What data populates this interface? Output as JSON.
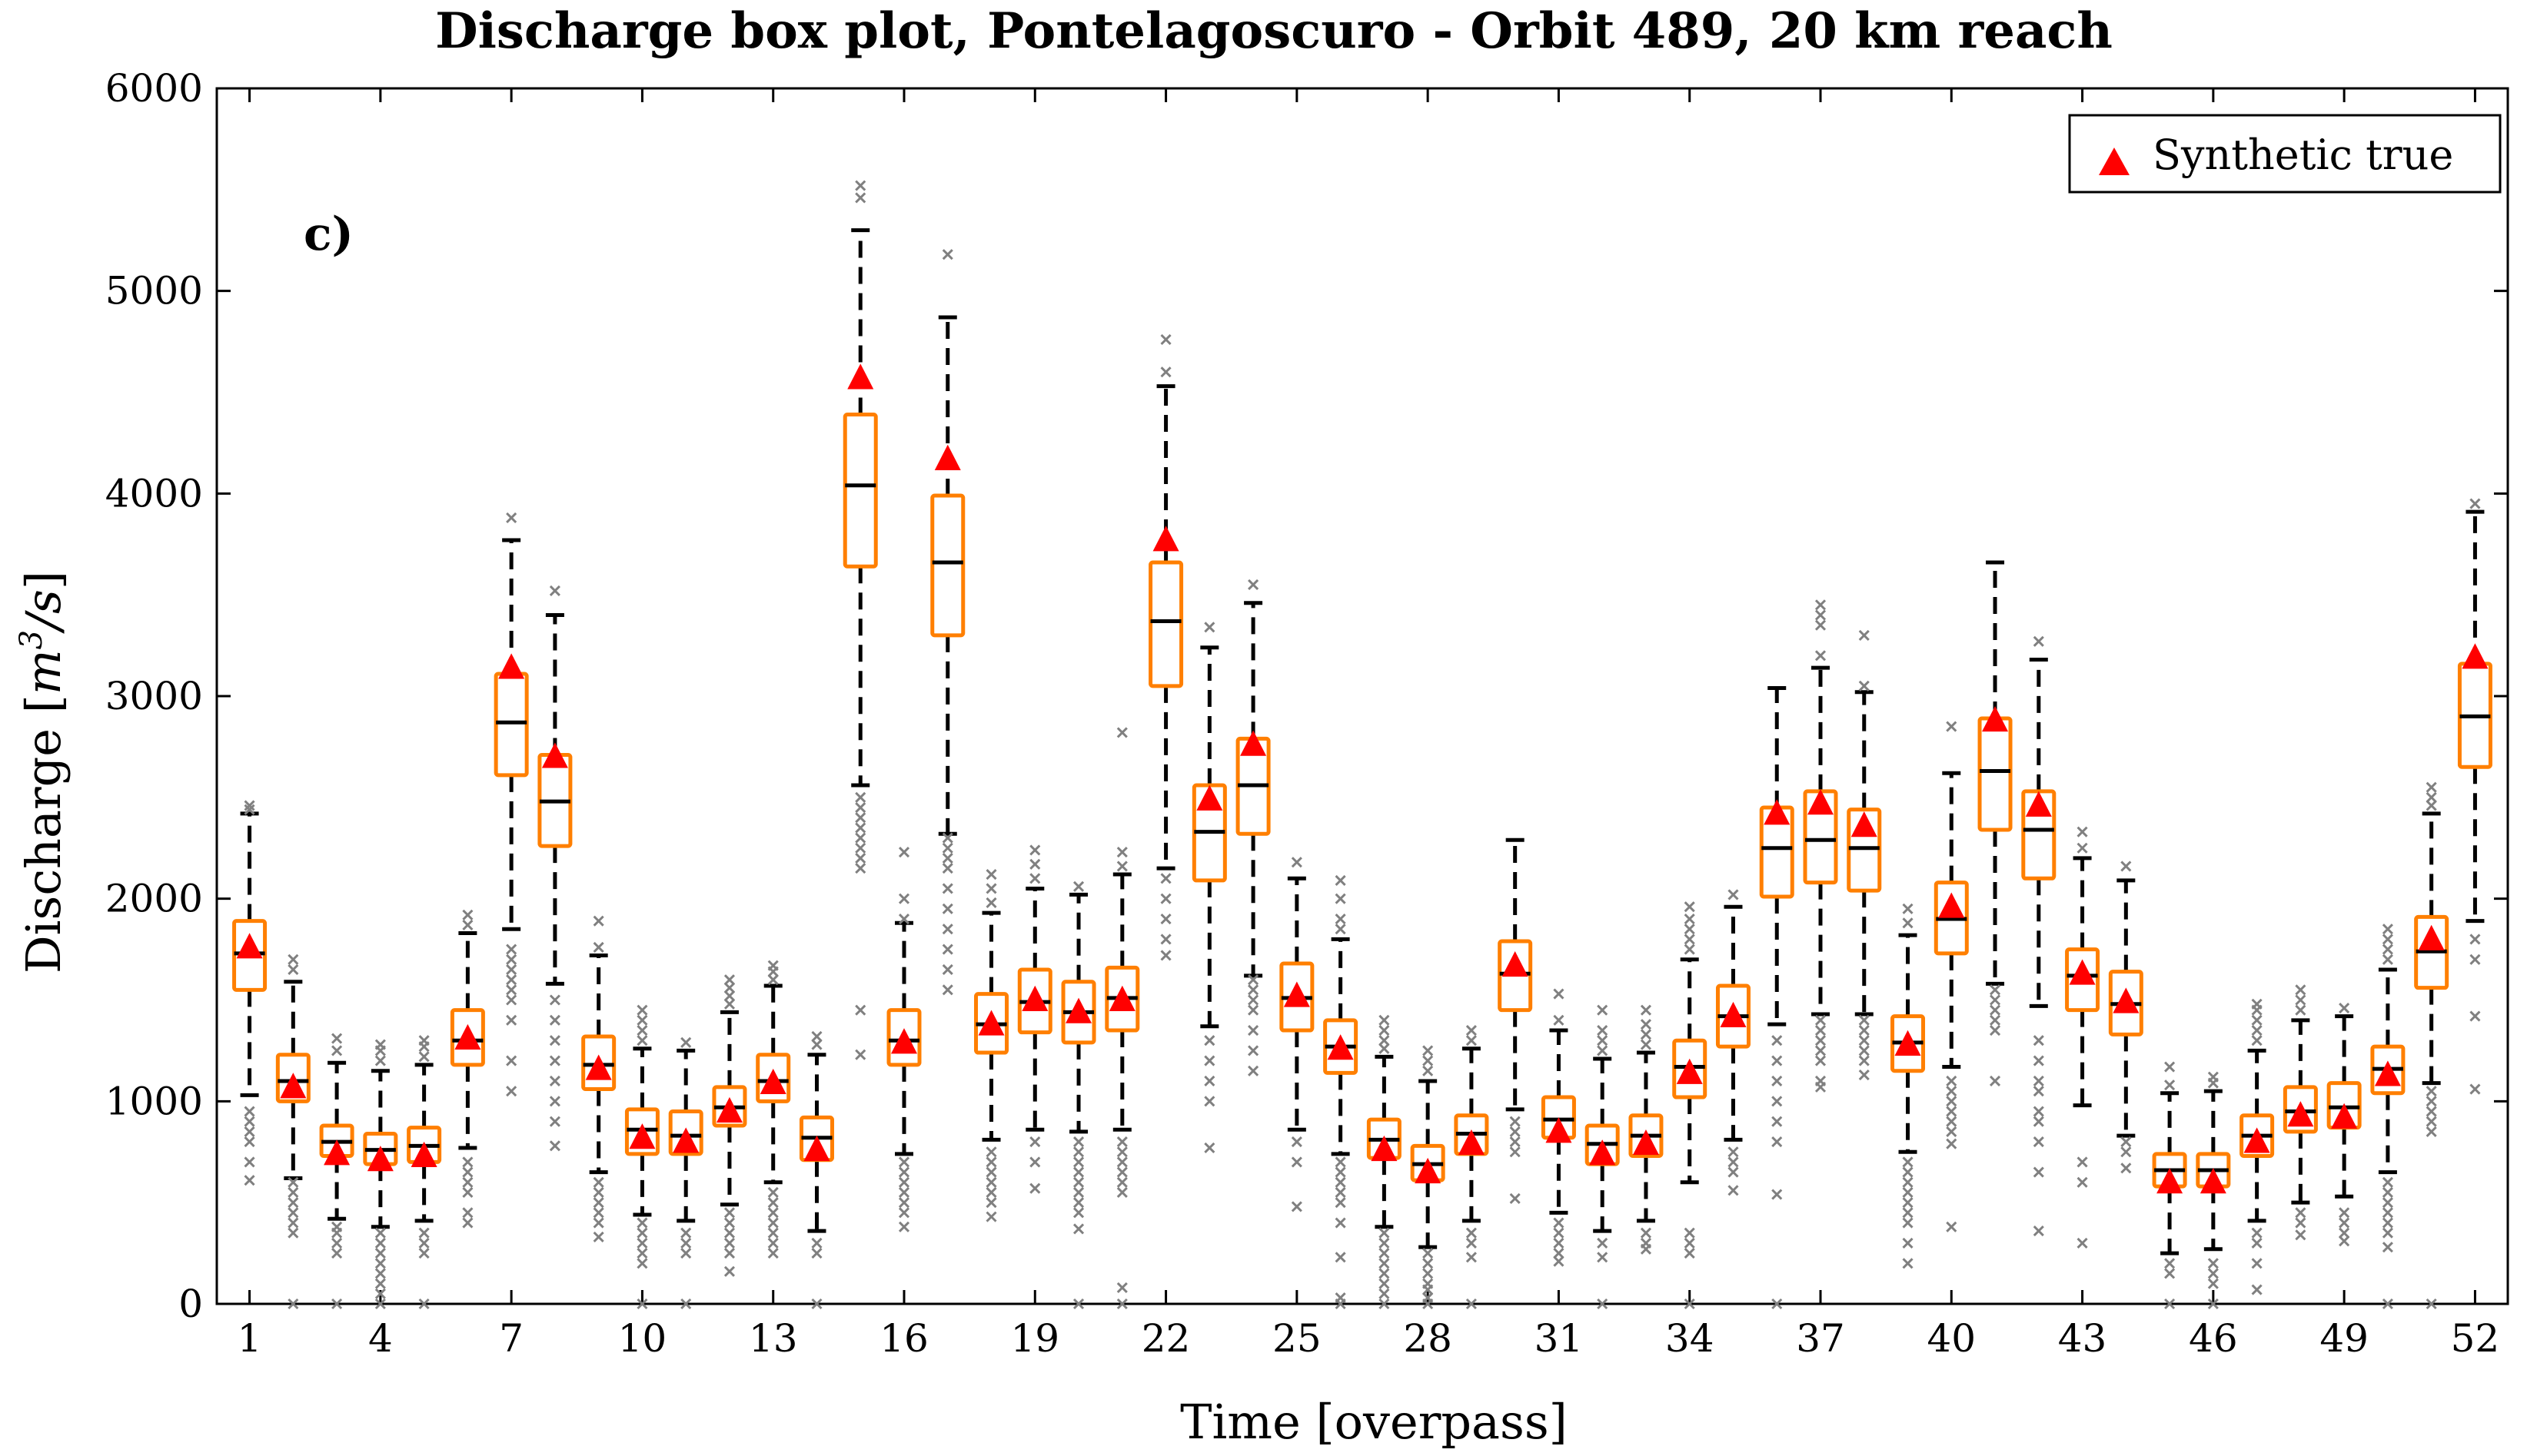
{
  "chart_data": {
    "type": "box",
    "title": "Discharge box plot, Pontelagoscuro - Orbit 489, 20 km reach",
    "xlabel": "Time [overpass]",
    "ylabel_text": "Discharge [",
    "ylabel_unit": "m",
    "ylabel_sup": "3",
    "ylabel_unit2": "/s",
    "ylabel_close": "]",
    "panel_label": "c)",
    "legend": {
      "label": "Synthetic true",
      "placement": "top-right"
    },
    "xlim": [
      0.25,
      52.75
    ],
    "ylim": [
      0,
      6000
    ],
    "xticks": [
      1,
      4,
      7,
      10,
      13,
      16,
      19,
      22,
      25,
      28,
      31,
      34,
      37,
      40,
      43,
      46,
      49,
      52
    ],
    "xtick_labels": [
      "1",
      "4",
      "7",
      "10",
      "13",
      "16",
      "19",
      "22",
      "25",
      "28",
      "31",
      "34",
      "37",
      "40",
      "43",
      "46",
      "49",
      "52"
    ],
    "yticks": [
      0,
      1000,
      2000,
      3000,
      4000,
      5000,
      6000
    ],
    "ytick_labels": [
      "0",
      "1000",
      "2000",
      "3000",
      "4000",
      "5000",
      "6000"
    ],
    "colors": {
      "box": "#ff7f00",
      "median": "#000000",
      "whisker": "#000000",
      "outlier": "#808080",
      "truth": "#ff0000"
    },
    "boxes": [
      {
        "t": 1,
        "q1": 1550,
        "med": 1730,
        "q3": 1890,
        "lw": 1030,
        "uw": 2420,
        "truth": 1760,
        "out": [
          610,
          700,
          800,
          850,
          900,
          950,
          2440,
          2460
        ]
      },
      {
        "t": 2,
        "q1": 1000,
        "med": 1100,
        "q3": 1230,
        "lw": 620,
        "uw": 1590,
        "truth": 1070,
        "out": [
          0,
          350,
          400,
          450,
          500,
          550,
          600,
          1650,
          1700
        ]
      },
      {
        "t": 3,
        "q1": 730,
        "med": 800,
        "q3": 880,
        "lw": 420,
        "uw": 1190,
        "truth": 740,
        "out": [
          0,
          250,
          300,
          350,
          380,
          1250,
          1310
        ]
      },
      {
        "t": 4,
        "q1": 690,
        "med": 760,
        "q3": 840,
        "lw": 380,
        "uw": 1150,
        "truth": 710,
        "out": [
          0,
          50,
          100,
          150,
          200,
          250,
          300,
          350,
          1200,
          1250,
          1280
        ]
      },
      {
        "t": 5,
        "q1": 700,
        "med": 780,
        "q3": 870,
        "lw": 410,
        "uw": 1180,
        "truth": 730,
        "out": [
          0,
          250,
          300,
          350,
          1220,
          1270,
          1300
        ]
      },
      {
        "t": 6,
        "q1": 1180,
        "med": 1300,
        "q3": 1450,
        "lw": 770,
        "uw": 1830,
        "truth": 1310,
        "out": [
          400,
          450,
          550,
          600,
          650,
          700,
          1870,
          1920
        ]
      },
      {
        "t": 7,
        "q1": 2610,
        "med": 2870,
        "q3": 3110,
        "lw": 1850,
        "uw": 3770,
        "truth": 3140,
        "out": [
          1050,
          1200,
          1400,
          1500,
          1550,
          1600,
          1650,
          1700,
          1750,
          3880
        ]
      },
      {
        "t": 8,
        "q1": 2260,
        "med": 2480,
        "q3": 2710,
        "lw": 1580,
        "uw": 3400,
        "truth": 2700,
        "out": [
          780,
          900,
          1000,
          1100,
          1200,
          1300,
          1400,
          1500,
          3520
        ]
      },
      {
        "t": 9,
        "q1": 1060,
        "med": 1180,
        "q3": 1320,
        "lw": 650,
        "uw": 1720,
        "truth": 1160,
        "out": [
          330,
          400,
          450,
          500,
          550,
          600,
          1760,
          1890
        ]
      },
      {
        "t": 10,
        "q1": 740,
        "med": 860,
        "q3": 960,
        "lw": 440,
        "uw": 1260,
        "truth": 820,
        "out": [
          0,
          200,
          250,
          300,
          350,
          400,
          1300,
          1350,
          1400,
          1450
        ]
      },
      {
        "t": 11,
        "q1": 740,
        "med": 830,
        "q3": 950,
        "lw": 410,
        "uw": 1250,
        "truth": 800,
        "out": [
          0,
          250,
          300,
          350,
          1290
        ]
      },
      {
        "t": 12,
        "q1": 880,
        "med": 970,
        "q3": 1070,
        "lw": 490,
        "uw": 1440,
        "truth": 950,
        "out": [
          160,
          250,
          300,
          350,
          400,
          450,
          1480,
          1520,
          1560,
          1600
        ]
      },
      {
        "t": 13,
        "q1": 1000,
        "med": 1100,
        "q3": 1230,
        "lw": 600,
        "uw": 1570,
        "truth": 1090,
        "out": [
          250,
          300,
          350,
          400,
          450,
          500,
          550,
          1600,
          1640,
          1670
        ]
      },
      {
        "t": 14,
        "q1": 710,
        "med": 820,
        "q3": 920,
        "lw": 360,
        "uw": 1230,
        "truth": 760,
        "out": [
          0,
          250,
          300,
          1280,
          1320
        ]
      },
      {
        "t": 15,
        "q1": 3640,
        "med": 4040,
        "q3": 4390,
        "lw": 2560,
        "uw": 5300,
        "truth": 4570,
        "out": [
          1230,
          1450,
          2150,
          2200,
          2250,
          2300,
          2350,
          2400,
          2450,
          2500,
          5460,
          5520
        ]
      },
      {
        "t": 16,
        "q1": 1180,
        "med": 1300,
        "q3": 1450,
        "lw": 740,
        "uw": 1880,
        "truth": 1290,
        "out": [
          380,
          450,
          500,
          550,
          600,
          650,
          700,
          1900,
          2000,
          2230
        ]
      },
      {
        "t": 17,
        "q1": 3300,
        "med": 3660,
        "q3": 3990,
        "lw": 2320,
        "uw": 4870,
        "truth": 4170,
        "out": [
          1550,
          1650,
          1750,
          1850,
          1950,
          2050,
          2150,
          2200,
          2250,
          2300,
          5180
        ]
      },
      {
        "t": 18,
        "q1": 1240,
        "med": 1380,
        "q3": 1530,
        "lw": 810,
        "uw": 1930,
        "truth": 1380,
        "out": [
          430,
          500,
          550,
          600,
          650,
          700,
          750,
          1980,
          2050,
          2120
        ]
      },
      {
        "t": 19,
        "q1": 1340,
        "med": 1490,
        "q3": 1650,
        "lw": 860,
        "uw": 2050,
        "truth": 1500,
        "out": [
          570,
          700,
          800,
          2100,
          2170,
          2240
        ]
      },
      {
        "t": 20,
        "q1": 1290,
        "med": 1440,
        "q3": 1590,
        "lw": 850,
        "uw": 2020,
        "truth": 1440,
        "out": [
          0,
          370,
          450,
          500,
          550,
          600,
          650,
          700,
          750,
          800,
          2060
        ]
      },
      {
        "t": 21,
        "q1": 1350,
        "med": 1510,
        "q3": 1660,
        "lw": 860,
        "uw": 2120,
        "truth": 1500,
        "out": [
          0,
          80,
          550,
          600,
          650,
          700,
          750,
          800,
          2160,
          2230,
          2820
        ]
      },
      {
        "t": 22,
        "q1": 3050,
        "med": 3370,
        "q3": 3660,
        "lw": 2150,
        "uw": 4530,
        "truth": 3770,
        "out": [
          1720,
          1800,
          1900,
          2000,
          2100,
          4600,
          4760
        ]
      },
      {
        "t": 23,
        "q1": 2090,
        "med": 2330,
        "q3": 2560,
        "lw": 1370,
        "uw": 3240,
        "truth": 2490,
        "out": [
          770,
          1000,
          1100,
          1200,
          1300,
          3340
        ]
      },
      {
        "t": 24,
        "q1": 2320,
        "med": 2560,
        "q3": 2790,
        "lw": 1620,
        "uw": 3460,
        "truth": 2760,
        "out": [
          1150,
          1250,
          1350,
          1450,
          1500,
          1550,
          1600,
          3550
        ]
      },
      {
        "t": 25,
        "q1": 1350,
        "med": 1510,
        "q3": 1680,
        "lw": 860,
        "uw": 2100,
        "truth": 1520,
        "out": [
          480,
          700,
          800,
          2180
        ]
      },
      {
        "t": 26,
        "q1": 1140,
        "med": 1270,
        "q3": 1400,
        "lw": 740,
        "uw": 1800,
        "truth": 1260,
        "out": [
          0,
          30,
          230,
          400,
          500,
          550,
          600,
          650,
          700,
          1850,
          1900,
          2000,
          2090
        ]
      },
      {
        "t": 27,
        "q1": 720,
        "med": 810,
        "q3": 910,
        "lw": 380,
        "uw": 1220,
        "truth": 760,
        "out": [
          0,
          50,
          100,
          150,
          200,
          250,
          300,
          350,
          1260,
          1300,
          1350,
          1400
        ]
      },
      {
        "t": 28,
        "q1": 610,
        "med": 690,
        "q3": 780,
        "lw": 280,
        "uw": 1100,
        "truth": 650,
        "out": [
          0,
          30,
          70,
          100,
          150,
          200,
          250,
          1150,
          1200,
          1250
        ]
      },
      {
        "t": 29,
        "q1": 740,
        "med": 840,
        "q3": 930,
        "lw": 410,
        "uw": 1260,
        "truth": 790,
        "out": [
          0,
          230,
          300,
          350,
          1300,
          1350
        ]
      },
      {
        "t": 30,
        "q1": 1450,
        "med": 1630,
        "q3": 1790,
        "lw": 960,
        "uw": 2290,
        "truth": 1670,
        "out": [
          520,
          750,
          800,
          850,
          900
        ]
      },
      {
        "t": 31,
        "q1": 820,
        "med": 910,
        "q3": 1020,
        "lw": 450,
        "uw": 1350,
        "truth": 850,
        "out": [
          210,
          250,
          300,
          350,
          400,
          1400,
          1530
        ]
      },
      {
        "t": 32,
        "q1": 690,
        "med": 790,
        "q3": 880,
        "lw": 360,
        "uw": 1210,
        "truth": 740,
        "out": [
          0,
          230,
          300,
          1250,
          1300,
          1350,
          1450
        ]
      },
      {
        "t": 33,
        "q1": 730,
        "med": 830,
        "q3": 930,
        "lw": 410,
        "uw": 1240,
        "truth": 790,
        "out": [
          270,
          300,
          350,
          1280,
          1330,
          1380,
          1450
        ]
      },
      {
        "t": 34,
        "q1": 1020,
        "med": 1170,
        "q3": 1300,
        "lw": 600,
        "uw": 1700,
        "truth": 1140,
        "out": [
          0,
          250,
          300,
          350,
          1750,
          1800,
          1850,
          1900,
          1960
        ]
      },
      {
        "t": 35,
        "q1": 1270,
        "med": 1420,
        "q3": 1570,
        "lw": 810,
        "uw": 1960,
        "truth": 1420,
        "out": [
          560,
          650,
          700,
          750,
          2020
        ]
      },
      {
        "t": 36,
        "q1": 2010,
        "med": 2250,
        "q3": 2450,
        "lw": 1380,
        "uw": 3040,
        "truth": 2420,
        "out": [
          0,
          540,
          800,
          900,
          1000,
          1100,
          1200,
          1300
        ]
      },
      {
        "t": 37,
        "q1": 2080,
        "med": 2290,
        "q3": 2530,
        "lw": 1430,
        "uw": 3140,
        "truth": 2470,
        "out": [
          1070,
          1100,
          1200,
          1250,
          1300,
          1350,
          1400,
          3200,
          3350,
          3400,
          3450
        ]
      },
      {
        "t": 38,
        "q1": 2040,
        "med": 2250,
        "q3": 2440,
        "lw": 1430,
        "uw": 3020,
        "truth": 2360,
        "out": [
          1130,
          1200,
          1250,
          1300,
          1350,
          1400,
          3050,
          3300
        ]
      },
      {
        "t": 39,
        "q1": 1150,
        "med": 1290,
        "q3": 1420,
        "lw": 750,
        "uw": 1820,
        "truth": 1280,
        "out": [
          200,
          300,
          400,
          450,
          500,
          550,
          600,
          650,
          700,
          1880,
          1950
        ]
      },
      {
        "t": 40,
        "q1": 1730,
        "med": 1900,
        "q3": 2080,
        "lw": 1170,
        "uw": 2620,
        "truth": 1960,
        "out": [
          380,
          790,
          850,
          900,
          950,
          1000,
          1050,
          1100,
          2850
        ]
      },
      {
        "t": 41,
        "q1": 2340,
        "med": 2630,
        "q3": 2890,
        "lw": 1580,
        "uw": 3660,
        "truth": 2880,
        "out": [
          1100,
          1350,
          1400,
          1450,
          1500,
          1550
        ]
      },
      {
        "t": 42,
        "q1": 2100,
        "med": 2340,
        "q3": 2530,
        "lw": 1470,
        "uw": 3180,
        "truth": 2460,
        "out": [
          360,
          650,
          800,
          900,
          950,
          1050,
          1100,
          1200,
          1300,
          3270
        ]
      },
      {
        "t": 43,
        "q1": 1450,
        "med": 1620,
        "q3": 1750,
        "lw": 980,
        "uw": 2200,
        "truth": 1630,
        "out": [
          300,
          600,
          700,
          2250,
          2330
        ]
      },
      {
        "t": 44,
        "q1": 1330,
        "med": 1480,
        "q3": 1640,
        "lw": 830,
        "uw": 2090,
        "truth": 1490,
        "out": [
          670,
          750,
          800,
          2160
        ]
      },
      {
        "t": 45,
        "q1": 580,
        "med": 660,
        "q3": 740,
        "lw": 250,
        "uw": 1040,
        "truth": 600,
        "out": [
          0,
          150,
          200,
          1080,
          1170
        ]
      },
      {
        "t": 46,
        "q1": 580,
        "med": 660,
        "q3": 740,
        "lw": 270,
        "uw": 1050,
        "truth": 600,
        "out": [
          0,
          100,
          150,
          200,
          1090,
          1120
        ]
      },
      {
        "t": 47,
        "q1": 730,
        "med": 830,
        "q3": 930,
        "lw": 410,
        "uw": 1250,
        "truth": 800,
        "out": [
          70,
          200,
          300,
          350,
          1300,
          1350,
          1400,
          1450,
          1480
        ]
      },
      {
        "t": 48,
        "q1": 850,
        "med": 950,
        "q3": 1070,
        "lw": 500,
        "uw": 1400,
        "truth": 930,
        "out": [
          340,
          400,
          450,
          1450,
          1500,
          1550
        ]
      },
      {
        "t": 49,
        "q1": 870,
        "med": 970,
        "q3": 1090,
        "lw": 530,
        "uw": 1420,
        "truth": 920,
        "out": [
          310,
          350,
          400,
          450,
          1460
        ]
      },
      {
        "t": 50,
        "q1": 1040,
        "med": 1160,
        "q3": 1270,
        "lw": 650,
        "uw": 1650,
        "truth": 1130,
        "out": [
          0,
          280,
          350,
          400,
          450,
          500,
          550,
          600,
          1700,
          1750,
          1800,
          1850
        ]
      },
      {
        "t": 51,
        "q1": 1560,
        "med": 1740,
        "q3": 1910,
        "lw": 1090,
        "uw": 2420,
        "truth": 1800,
        "out": [
          0,
          850,
          900,
          950,
          1000,
          1050,
          2460,
          2500,
          2550
        ]
      },
      {
        "t": 52,
        "q1": 2650,
        "med": 2900,
        "q3": 3160,
        "lw": 1890,
        "uw": 3910,
        "truth": 3190,
        "out": [
          1060,
          1420,
          1700,
          1800,
          3950
        ]
      }
    ]
  }
}
